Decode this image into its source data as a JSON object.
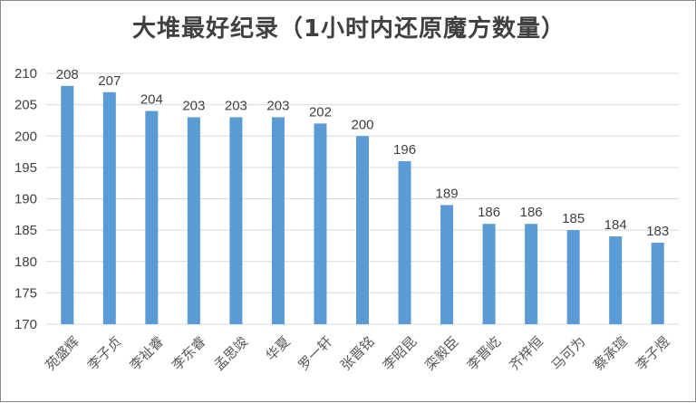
{
  "chart_data": {
    "type": "bar",
    "title": "大堆最好纪录（1小时内还原魔方数量）",
    "categories": [
      "苑盛辉",
      "李子贞",
      "李祉睿",
      "李东睿",
      "孟思竣",
      "华夏",
      "罗一轩",
      "张晋铭",
      "李昭昆",
      "栾毅臣",
      "李晋屹",
      "齐梓恒",
      "马可为",
      "蔡承瑄",
      "李子煜"
    ],
    "values": [
      208,
      207,
      204,
      203,
      203,
      203,
      202,
      200,
      196,
      189,
      186,
      186,
      185,
      184,
      183
    ],
    "ylim": [
      170,
      210
    ],
    "yticks": [
      170,
      175,
      180,
      185,
      190,
      195,
      200,
      205,
      210
    ],
    "grid": true,
    "bar_color": "#5b9bd5",
    "xlabel": "",
    "ylabel": ""
  }
}
